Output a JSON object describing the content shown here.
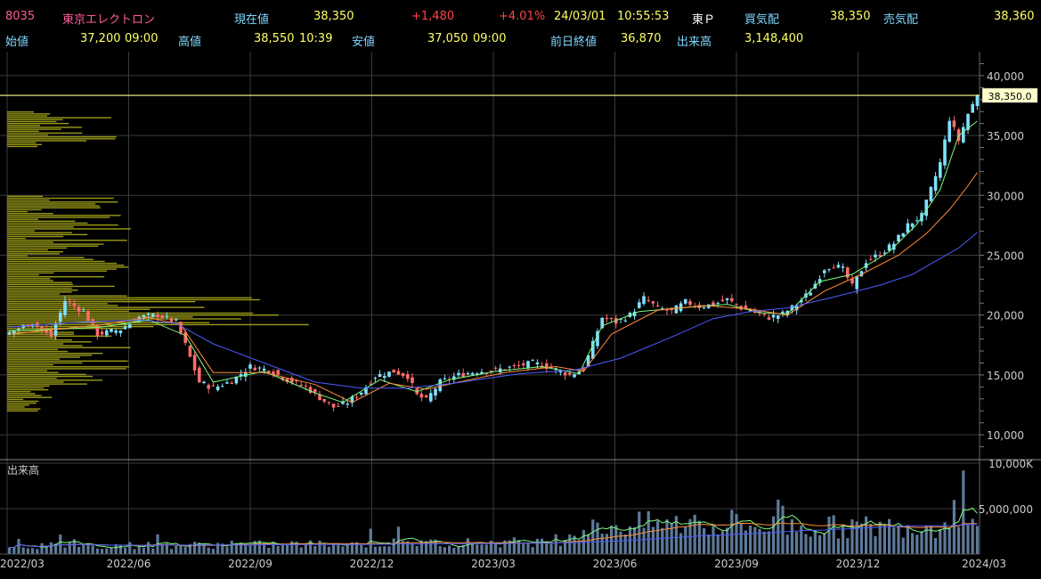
{
  "header": {
    "code": "8035",
    "name": "東京エレクトロン",
    "current_label": "現在値",
    "current_value": "38,350",
    "change": "+1,480",
    "change_pct": "+4.01%",
    "date": "24/03/01",
    "time": "10:55:53",
    "market": "東Ｐ",
    "bid_label": "買気配",
    "bid_value": "38,350",
    "ask_label": "売気配",
    "ask_value": "38,360",
    "open_label": "始値",
    "open_value": "37,200",
    "open_time": "09:00",
    "high_label": "高値",
    "high_value": "38,550",
    "high_time": "10:39",
    "low_label": "安値",
    "low_value": "37,050",
    "low_time": "09:00",
    "prev_close_label": "前日終値",
    "prev_close_value": "36,870",
    "volume_label": "出来高",
    "volume_value": "3,148,400"
  },
  "colors": {
    "code": "#ff5a9a",
    "name": "#ff5a9a",
    "label": "#7fd7ff",
    "value": "#ffff66",
    "up": "#ff4444",
    "white": "#ffffff",
    "candle_up": "#7fe0ff",
    "candle_down": "#ff6b6b",
    "ma_short": "#7CFC7C",
    "ma_mid": "#ff8c3a",
    "ma_long": "#4d5cff",
    "profile": "#9a9a18",
    "volume_bar": "#5d7a9a",
    "price_line": "#ffff99",
    "grid": "#3a3a3a"
  },
  "chart_data": [
    {
      "type": "candlestick",
      "title": "",
      "x_tick_labels": [
        "2022/03",
        "2022/06",
        "2022/09",
        "2022/12",
        "2023/03",
        "2023/06",
        "2023/09",
        "2023/12",
        "2024/03"
      ],
      "y_tick_labels": [
        "10,000",
        "15,000",
        "20,000",
        "25,000",
        "30,000",
        "35,000",
        "40,000"
      ],
      "y_ticks": [
        10000,
        15000,
        20000,
        25000,
        30000,
        35000,
        40000
      ],
      "ylim": [
        8000,
        42000
      ],
      "current_price_label": "38,350.0",
      "current_price": 38350,
      "close_path": [
        [
          0,
          18500
        ],
        [
          5,
          19400
        ],
        [
          9,
          18200
        ],
        [
          12,
          21200
        ],
        [
          16,
          20300
        ],
        [
          19,
          18400
        ],
        [
          24,
          18800
        ],
        [
          28,
          19800
        ],
        [
          32,
          20000
        ],
        [
          36,
          19400
        ],
        [
          38,
          17500
        ],
        [
          41,
          14400
        ],
        [
          44,
          13900
        ],
        [
          48,
          14500
        ],
        [
          52,
          15700
        ],
        [
          56,
          15400
        ],
        [
          60,
          14600
        ],
        [
          64,
          14000
        ],
        [
          67,
          13100
        ],
        [
          70,
          12300
        ],
        [
          73,
          12700
        ],
        [
          76,
          13600
        ],
        [
          79,
          14900
        ],
        [
          83,
          15300
        ],
        [
          86,
          14900
        ],
        [
          88,
          13300
        ],
        [
          90,
          12900
        ],
        [
          93,
          14400
        ],
        [
          97,
          15000
        ],
        [
          101,
          15300
        ],
        [
          105,
          15400
        ],
        [
          109,
          15700
        ],
        [
          113,
          16000
        ],
        [
          117,
          15600
        ],
        [
          121,
          15000
        ],
        [
          124,
          15500
        ],
        [
          126,
          17600
        ],
        [
          128,
          19800
        ],
        [
          131,
          19400
        ],
        [
          134,
          20000
        ],
        [
          137,
          21400
        ],
        [
          140,
          20600
        ],
        [
          143,
          20300
        ],
        [
          146,
          21100
        ],
        [
          149,
          20700
        ],
        [
          152,
          20900
        ],
        [
          155,
          21300
        ],
        [
          158,
          20600
        ],
        [
          161,
          20200
        ],
        [
          164,
          19800
        ],
        [
          167,
          20100
        ],
        [
          170,
          20900
        ],
        [
          173,
          22000
        ],
        [
          176,
          23900
        ],
        [
          178,
          24200
        ],
        [
          180,
          23800
        ],
        [
          182,
          22400
        ],
        [
          185,
          24500
        ],
        [
          188,
          25100
        ],
        [
          191,
          26000
        ],
        [
          194,
          27500
        ],
        [
          197,
          28300
        ],
        [
          199,
          30500
        ],
        [
          201,
          32700
        ],
        [
          203,
          36400
        ],
        [
          205,
          34600
        ],
        [
          207,
          36800
        ],
        [
          209,
          38350
        ]
      ],
      "series": [
        {
          "name": "",
          "kind": "ma_short",
          "points": [
            [
              0,
              18700
            ],
            [
              10,
              18800
            ],
            [
              20,
              19000
            ],
            [
              30,
              19600
            ],
            [
              38,
              18300
            ],
            [
              44,
              14400
            ],
            [
              55,
              15300
            ],
            [
              66,
              13500
            ],
            [
              72,
              12700
            ],
            [
              80,
              14600
            ],
            [
              88,
              13600
            ],
            [
              95,
              14600
            ],
            [
              105,
              15300
            ],
            [
              115,
              15700
            ],
            [
              123,
              15100
            ],
            [
              128,
              19100
            ],
            [
              136,
              20300
            ],
            [
              145,
              20600
            ],
            [
              155,
              20900
            ],
            [
              162,
              20200
            ],
            [
              168,
              20100
            ],
            [
              175,
              22800
            ],
            [
              182,
              23400
            ],
            [
              190,
              25300
            ],
            [
              196,
              27600
            ],
            [
              201,
              30500
            ],
            [
              205,
              35000
            ],
            [
              209,
              36200
            ]
          ]
        },
        {
          "name": "",
          "kind": "ma_mid",
          "points": [
            [
              0,
              18400
            ],
            [
              10,
              18800
            ],
            [
              20,
              19200
            ],
            [
              30,
              19800
            ],
            [
              37,
              19200
            ],
            [
              44,
              15200
            ],
            [
              55,
              15200
            ],
            [
              66,
              14200
            ],
            [
              74,
              12700
            ],
            [
              82,
              14300
            ],
            [
              90,
              13800
            ],
            [
              97,
              14400
            ],
            [
              107,
              15200
            ],
            [
              118,
              15700
            ],
            [
              124,
              15300
            ],
            [
              130,
              18400
            ],
            [
              140,
              20400
            ],
            [
              150,
              20800
            ],
            [
              160,
              20500
            ],
            [
              168,
              20000
            ],
            [
              176,
              22000
            ],
            [
              184,
              23400
            ],
            [
              192,
              25000
            ],
            [
              198,
              26800
            ],
            [
              203,
              28800
            ],
            [
              207,
              30800
            ],
            [
              209,
              31900
            ]
          ]
        },
        {
          "name": "",
          "kind": "ma_long",
          "points": [
            [
              0,
              19000
            ],
            [
              15,
              19400
            ],
            [
              28,
              19600
            ],
            [
              36,
              19300
            ],
            [
              44,
              17600
            ],
            [
              55,
              16000
            ],
            [
              66,
              14400
            ],
            [
              76,
              13900
            ],
            [
              86,
              13900
            ],
            [
              96,
              14300
            ],
            [
              110,
              15100
            ],
            [
              122,
              15400
            ],
            [
              132,
              16400
            ],
            [
              142,
              18000
            ],
            [
              152,
              19700
            ],
            [
              160,
              20300
            ],
            [
              168,
              20600
            ],
            [
              178,
              21500
            ],
            [
              188,
              22500
            ],
            [
              195,
              23400
            ],
            [
              200,
              24500
            ],
            [
              205,
              25600
            ],
            [
              209,
              26900
            ]
          ]
        }
      ]
    },
    {
      "type": "bar",
      "title": "出来高",
      "y_tick_labels": [
        "10,000K",
        "5,000,000"
      ],
      "y_ticks": [
        10000000,
        5000000
      ],
      "ylim": [
        0,
        10000000
      ],
      "level_path": [
        [
          0,
          1000000
        ],
        [
          40,
          1100000
        ],
        [
          80,
          1300000
        ],
        [
          118,
          1500000
        ],
        [
          122,
          2700000
        ],
        [
          130,
          3500000
        ],
        [
          140,
          3700000
        ],
        [
          160,
          3500000
        ],
        [
          180,
          3300000
        ],
        [
          200,
          3500000
        ],
        [
          204,
          5500000
        ],
        [
          209,
          3500000
        ]
      ]
    }
  ],
  "volume_profile_note_hidden": ""
}
